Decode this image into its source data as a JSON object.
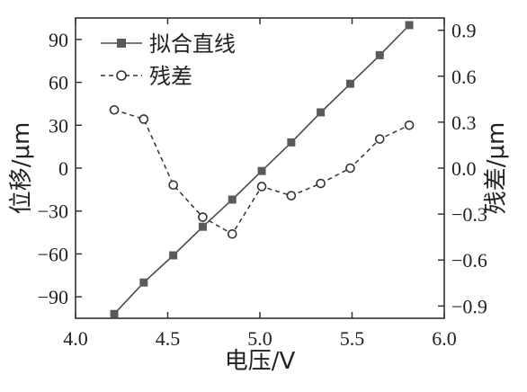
{
  "chart_data": {
    "type": "line",
    "xlabel": "电压/V",
    "ylabel_left": "位移/μm",
    "ylabel_right": "残差/μm",
    "xlim": [
      4.0,
      6.0
    ],
    "ylim_left": [
      -105,
      105
    ],
    "ylim_right": [
      -0.98,
      0.98
    ],
    "x_ticks": [
      "4.0",
      "4.5",
      "5.0",
      "5.5",
      "6.0"
    ],
    "y_left_ticks": [
      "90",
      "60",
      "30",
      "0",
      "−30",
      "−60",
      "−90"
    ],
    "y_right_ticks": [
      "0.9",
      "0.6",
      "0.3",
      "0.0",
      "−0.3",
      "−0.6",
      "−0.9"
    ],
    "legend_position": "top-left",
    "series": [
      {
        "name": "拟合直线",
        "axis": "left",
        "style": "solid line with filled square markers",
        "color": "#4a4a4a",
        "points": [
          [
            4.21,
            -102
          ],
          [
            4.37,
            -80
          ],
          [
            4.53,
            -61
          ],
          [
            4.69,
            -41
          ],
          [
            4.85,
            -22
          ],
          [
            5.01,
            -2
          ],
          [
            5.17,
            18
          ],
          [
            5.33,
            39
          ],
          [
            5.49,
            59
          ],
          [
            5.65,
            79
          ],
          [
            5.81,
            100
          ]
        ]
      },
      {
        "name": "残差",
        "axis": "right",
        "style": "dashed line with open circle markers",
        "color": "#333333",
        "points": [
          [
            4.21,
            0.38
          ],
          [
            4.37,
            0.32
          ],
          [
            4.53,
            -0.11
          ],
          [
            4.69,
            -0.32
          ],
          [
            4.85,
            -0.43
          ],
          [
            5.01,
            -0.12
          ],
          [
            5.17,
            -0.18
          ],
          [
            5.33,
            -0.1
          ],
          [
            5.49,
            0.0
          ],
          [
            5.65,
            0.19
          ],
          [
            5.81,
            0.28
          ]
        ]
      }
    ]
  }
}
